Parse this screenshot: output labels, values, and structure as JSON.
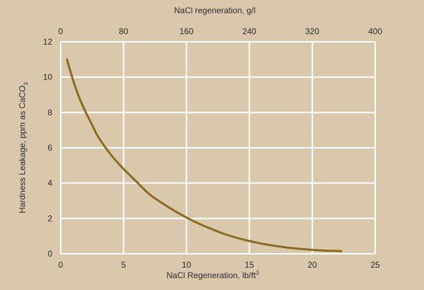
{
  "chart_data": {
    "type": "line",
    "title": "",
    "xlabel": "NaCl Regeneration, lb/ft",
    "xlabel_superscript": "3",
    "x2label": "NaCl regeneration, g/l",
    "ylabel": "Hardness Leakage, ppm as CaCO",
    "ylabel_subscript": "3",
    "xlim": [
      0,
      25
    ],
    "x2lim": [
      0,
      400
    ],
    "ylim": [
      0,
      12
    ],
    "xticks": [
      0,
      5,
      10,
      15,
      20,
      25
    ],
    "x2ticks": [
      0,
      80,
      160,
      240,
      320,
      400
    ],
    "yticks": [
      0,
      2,
      4,
      6,
      8,
      10,
      12
    ],
    "grid": true,
    "colors": {
      "background": "#dac8ad",
      "plot_area": "#dac8ad",
      "grid": "#ffffff",
      "line": "#8a6a1e"
    },
    "series": [
      {
        "x": [
          0.5,
          1.0,
          1.5,
          2.0,
          2.5,
          3.0,
          4.0,
          5.0,
          6.0,
          7.0,
          8.0,
          9.0,
          10.0,
          11.0,
          12.0,
          13.0,
          14.0,
          15.0,
          16.0,
          17.0,
          18.0,
          19.0,
          20.0,
          21.0,
          22.0,
          22.3
        ],
        "y": [
          11.0,
          9.8,
          8.8,
          8.0,
          7.3,
          6.6,
          5.6,
          4.8,
          4.1,
          3.4,
          2.9,
          2.45,
          2.05,
          1.7,
          1.4,
          1.12,
          0.9,
          0.72,
          0.57,
          0.45,
          0.35,
          0.28,
          0.22,
          0.18,
          0.16,
          0.15
        ]
      }
    ]
  }
}
